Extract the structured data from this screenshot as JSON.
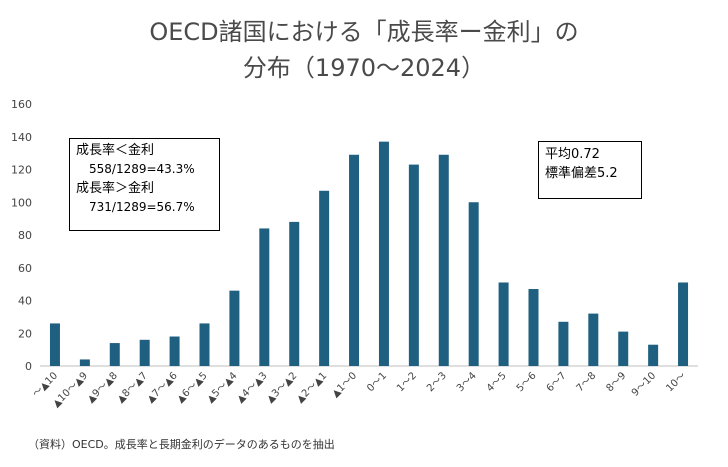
{
  "title_lines": [
    "OECD諸国における「成長率ー金利」の",
    "分布（1970〜2024）"
  ],
  "source": "（資料）OECD。成長率と長期金利のデータのあるものを抽出",
  "box_left": {
    "line1": "成長率＜金利",
    "line2": "558/1289=43.3%",
    "line3": "成長率＞金利",
    "line4": "731/1289=56.7%"
  },
  "box_right": {
    "line1": "平均0.72",
    "line2": "標準偏差5.2"
  },
  "chart_data": {
    "type": "bar",
    "categories": [
      "〜▲10",
      "▲10〜▲9",
      "▲9〜▲8",
      "▲8〜▲7",
      "▲7〜▲6",
      "▲6〜▲5",
      "▲5〜▲4",
      "▲4〜▲3",
      "▲3〜▲2",
      "▲2〜▲1",
      "▲1〜0",
      "0〜1",
      "1〜2",
      "2〜3",
      "3〜4",
      "4〜5",
      "5〜6",
      "6〜7",
      "7〜8",
      "8〜9",
      "9〜10",
      "10〜"
    ],
    "values": [
      26,
      4,
      14,
      16,
      18,
      26,
      46,
      84,
      88,
      107,
      129,
      137,
      123,
      129,
      100,
      51,
      47,
      27,
      32,
      21,
      13,
      51
    ],
    "yticks": [
      0,
      20,
      40,
      60,
      80,
      100,
      120,
      140,
      160
    ],
    "ylim": [
      0,
      160
    ],
    "bar_color": "#1f5f7f",
    "grid": false,
    "legend": false
  }
}
